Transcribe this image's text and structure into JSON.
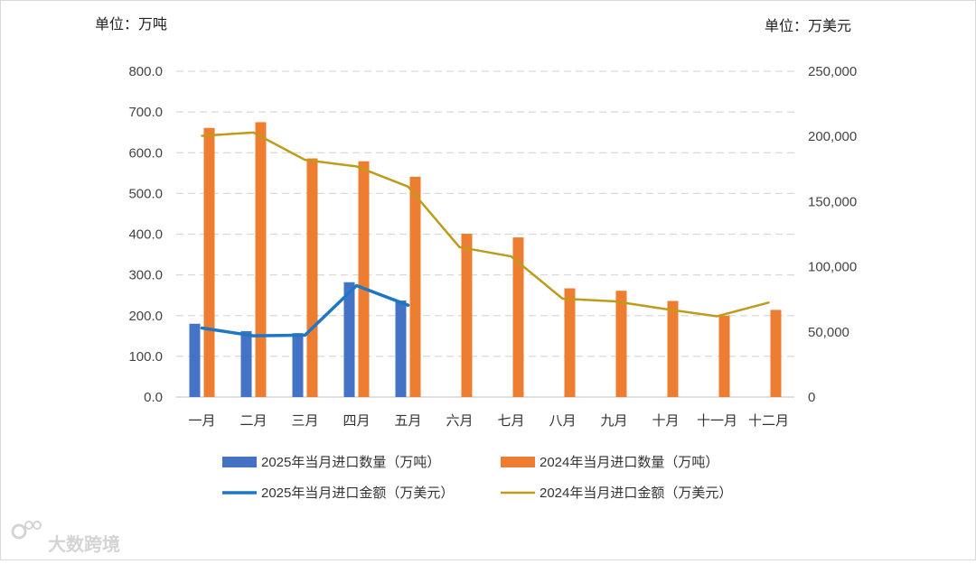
{
  "chart_data": {
    "type": "bar+line",
    "left_unit": "单位：万吨",
    "right_unit": "单位：万美元",
    "categories": [
      "一月",
      "二月",
      "三月",
      "四月",
      "五月",
      "六月",
      "七月",
      "八月",
      "九月",
      "十月",
      "十一月",
      "十二月"
    ],
    "left_axis": {
      "ylim": [
        0,
        800
      ],
      "ticks": [
        "0.0",
        "100.0",
        "200.0",
        "300.0",
        "400.0",
        "500.0",
        "600.0",
        "700.0",
        "800.0"
      ]
    },
    "right_axis": {
      "ylim": [
        0,
        250000
      ],
      "ticks": [
        "0",
        "50,000",
        "100,000",
        "150,000",
        "200,000",
        "250,000"
      ]
    },
    "grid": true,
    "bar_series": [
      {
        "name": "2025年当月进口数量（万吨）",
        "color": "#4472c4",
        "axis": "left",
        "values": [
          180,
          162,
          157,
          282,
          237,
          null,
          null,
          null,
          null,
          null,
          null,
          null
        ]
      },
      {
        "name": "2024年当月进口数量（万吨）",
        "color": "#ed7d31",
        "axis": "left",
        "values": [
          661,
          675,
          586,
          579,
          541,
          401,
          392,
          267,
          261,
          236,
          200,
          214
        ]
      }
    ],
    "line_series": [
      {
        "name": "2025年当月进口金额（万美元）",
        "color": "#1f77c4",
        "axis": "right",
        "values": [
          53000,
          47000,
          47500,
          85500,
          70500,
          null,
          null,
          null,
          null,
          null,
          null,
          null
        ]
      },
      {
        "name": "2024年当月进口金额（万美元）",
        "color": "#bf9b1a",
        "axis": "right",
        "values": [
          200500,
          203000,
          182000,
          177000,
          161500,
          115000,
          108000,
          75500,
          73500,
          67500,
          62000,
          72500
        ]
      }
    ],
    "legend": [
      {
        "label": "2025年当月进口数量（万吨）",
        "kind": "bar",
        "color": "#4472c4"
      },
      {
        "label": "2024年当月进口数量（万吨）",
        "kind": "bar",
        "color": "#ed7d31"
      },
      {
        "label": "2025年当月进口金额（万美元）",
        "kind": "line",
        "color": "#1f77c4"
      },
      {
        "label": "2024年当月进口金额（万美元）",
        "kind": "line",
        "color": "#bf9b1a"
      }
    ],
    "legend_position": "bottom"
  },
  "watermark": {
    "text": "大数跨境",
    "icon": "logo-icon"
  }
}
